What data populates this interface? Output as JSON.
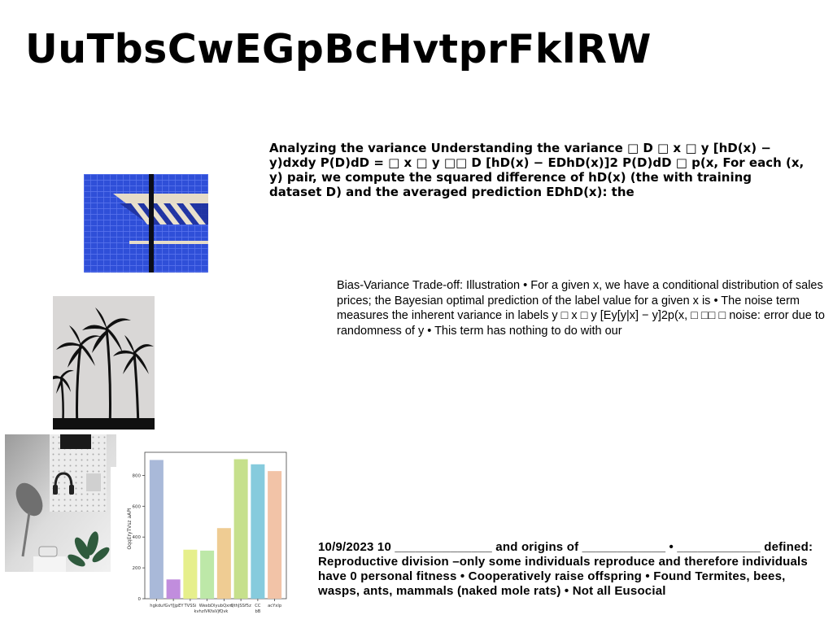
{
  "page": {
    "title": "UuTbsCwEGpBcHvtprFklRW"
  },
  "blocks": [
    {
      "text": "Analyzing the variance Understanding the variance □ D □ x □ y [hD(x) − y)dxdy P(D)dD = □ x □ y □□ D [hD(x) − EDhD(x)]2 P(D)dD □ p(x, For each (x, y) pair, we compute the squared difference of hD(x) (the with training dataset D) and the averaged prediction EDhD(x): the"
    },
    {
      "text": "Bias-Variance Trade-off: Illustration • For a given x, we have a conditional distribution of sales prices; the Bayesian optimal prediction of the label value for a given x is • The noise term measures the inherent variance in labels y □ x □ y [Ey[y|x] − y]2p(x, □ □□ □ noise: error due to randomness of y • This term has nothing to do with our"
    },
    {
      "text": "10/9/2023 10 ______________ and origins of ____________ • ____________ defined: Reproductive division –only some individuals reproduce and therefore individuals have 0 personal fitness • Cooperatively raise offspring • Found Termites, bees, wasps, ants, mammals (naked mole rats) • Not all Eusocial"
    }
  ],
  "chart_data": {
    "type": "bar",
    "categories": [
      "hgkdu",
      "fGvYJjpEY",
      "TVSSi",
      "WexbDl kvhzlVKfaVjf",
      "yubQxm Qvk",
      "QthJSSf5z",
      "CC bB",
      "acYxlp"
    ],
    "values": [
      900,
      125,
      318,
      312,
      458,
      905,
      872,
      828
    ],
    "colors": [
      "#a9b9d9",
      "#c18ddd",
      "#e6ef8c",
      "#bde8a8",
      "#efcc93",
      "#c6e08c",
      "#86cbdd",
      "#f2c3a7"
    ],
    "ylabel": "OqqEryTVsz aAPI",
    "ylim": [
      0,
      950
    ],
    "yticks": [
      0,
      200,
      400,
      600,
      800
    ],
    "grid": false
  }
}
